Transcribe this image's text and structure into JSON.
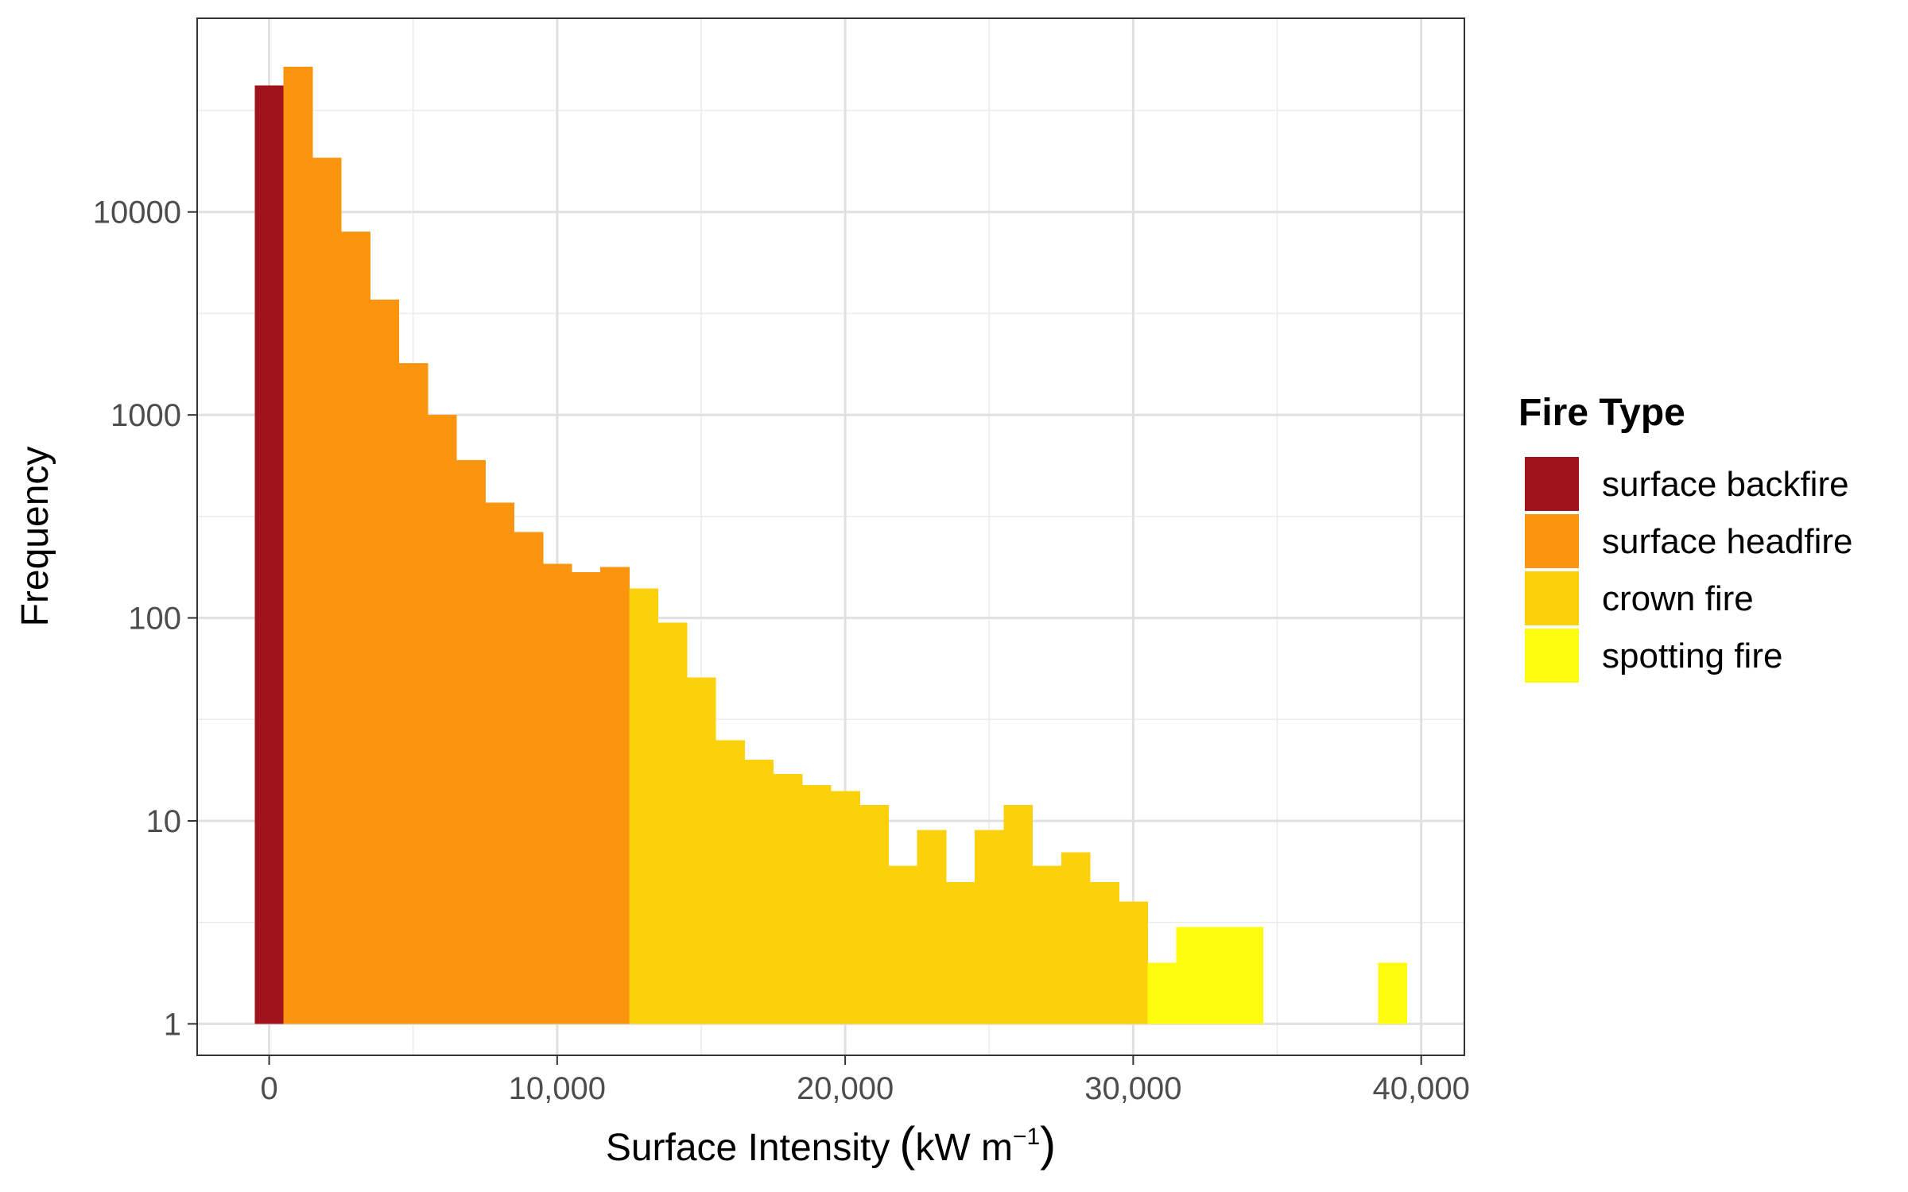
{
  "chart_data": {
    "type": "histogram",
    "xlabel": "Surface Intensity",
    "xlabel_unit_open": "(",
    "xlabel_unit_main": "kW m",
    "xlabel_unit_exp": "−1",
    "xlabel_unit_close": ")",
    "ylabel": "Frequency",
    "y_scale": "log10",
    "xlim": [
      -2500,
      41500
    ],
    "ylim": [
      0.7,
      90000
    ],
    "grid": true,
    "legend_placement": "right",
    "legend": {
      "title": "Fire Type",
      "entries": [
        {
          "label": "surface backfire",
          "color": "#a0131d"
        },
        {
          "label": "surface headfire",
          "color": "#fb940e"
        },
        {
          "label": "crown fire",
          "color": "#fdd00c"
        },
        {
          "label": "spotting fire",
          "color": "#fcfc0e"
        }
      ]
    },
    "x_ticks": [
      {
        "value": 0,
        "label": "0"
      },
      {
        "value": 10000,
        "label": "10,000"
      },
      {
        "value": 20000,
        "label": "20,000"
      },
      {
        "value": 30000,
        "label": "30,000"
      },
      {
        "value": 40000,
        "label": "40,000"
      }
    ],
    "y_ticks": [
      {
        "value": 1,
        "label": "1"
      },
      {
        "value": 10,
        "label": "10"
      },
      {
        "value": 100,
        "label": "100"
      },
      {
        "value": 1000,
        "label": "1000"
      },
      {
        "value": 10000,
        "label": "10000"
      }
    ],
    "bin_width": 1000,
    "bins": [
      {
        "x": 0,
        "count": 42000,
        "type": 0
      },
      {
        "x": 1000,
        "count": 52000,
        "type": 1
      },
      {
        "x": 2000,
        "count": 18500,
        "type": 1
      },
      {
        "x": 3000,
        "count": 8000,
        "type": 1
      },
      {
        "x": 4000,
        "count": 3700,
        "type": 1
      },
      {
        "x": 5000,
        "count": 1800,
        "type": 1
      },
      {
        "x": 6000,
        "count": 1000,
        "type": 1
      },
      {
        "x": 7000,
        "count": 600,
        "type": 1
      },
      {
        "x": 8000,
        "count": 370,
        "type": 1
      },
      {
        "x": 9000,
        "count": 265,
        "type": 1
      },
      {
        "x": 10000,
        "count": 185,
        "type": 1
      },
      {
        "x": 11000,
        "count": 168,
        "type": 1
      },
      {
        "x": 12000,
        "count": 178,
        "type": 1
      },
      {
        "x": 13000,
        "count": 140,
        "type": 2
      },
      {
        "x": 14000,
        "count": 95,
        "type": 2
      },
      {
        "x": 15000,
        "count": 51,
        "type": 2
      },
      {
        "x": 16000,
        "count": 25,
        "type": 2
      },
      {
        "x": 17000,
        "count": 20,
        "type": 2
      },
      {
        "x": 18000,
        "count": 17,
        "type": 2
      },
      {
        "x": 19000,
        "count": 15,
        "type": 2
      },
      {
        "x": 20000,
        "count": 14,
        "type": 2
      },
      {
        "x": 21000,
        "count": 12,
        "type": 2
      },
      {
        "x": 22000,
        "count": 6,
        "type": 2
      },
      {
        "x": 23000,
        "count": 9,
        "type": 2
      },
      {
        "x": 24000,
        "count": 5,
        "type": 2
      },
      {
        "x": 25000,
        "count": 9,
        "type": 2
      },
      {
        "x": 26000,
        "count": 12,
        "type": 2
      },
      {
        "x": 27000,
        "count": 6,
        "type": 2
      },
      {
        "x": 28000,
        "count": 7,
        "type": 2
      },
      {
        "x": 29000,
        "count": 5,
        "type": 2
      },
      {
        "x": 30000,
        "count": 4,
        "type": 2
      },
      {
        "x": 31000,
        "count": 2,
        "type": 3
      },
      {
        "x": 32000,
        "count": 3,
        "type": 3
      },
      {
        "x": 33000,
        "count": 3,
        "type": 3
      },
      {
        "x": 34000,
        "count": 3,
        "type": 3
      },
      {
        "x": 39000,
        "count": 2,
        "type": 3
      }
    ]
  }
}
